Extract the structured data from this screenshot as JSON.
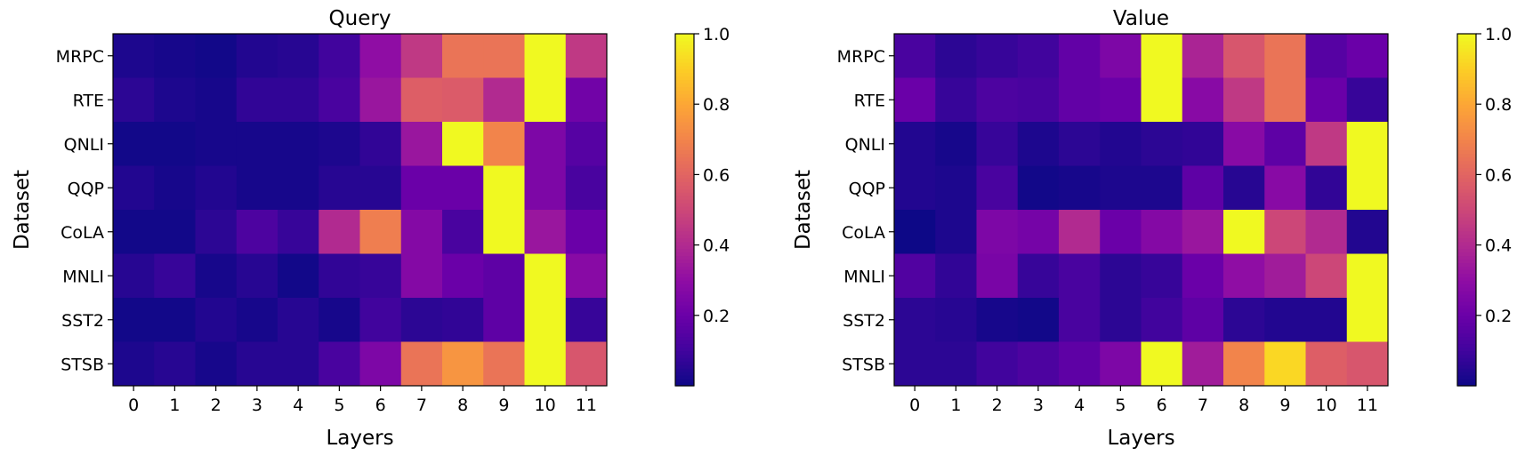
{
  "chart_data": [
    {
      "type": "heatmap",
      "title": "Query",
      "xlabel": "Layers",
      "ylabel": "Dataset",
      "colormap": "plasma",
      "x": [
        "0",
        "1",
        "2",
        "3",
        "4",
        "5",
        "6",
        "7",
        "8",
        "9",
        "10",
        "11"
      ],
      "y": [
        "MRPC",
        "RTE",
        "QNLI",
        "QQP",
        "CoLA",
        "MNLI",
        "SST2",
        "STSB"
      ],
      "colorbar_ticks": [
        "0.2",
        "0.4",
        "0.6",
        "0.8",
        "1.0"
      ],
      "vlim": [
        0.0,
        1.0
      ],
      "values": [
        [
          0.03,
          0.02,
          0.01,
          0.04,
          0.05,
          0.1,
          0.3,
          0.45,
          0.65,
          0.65,
          1.0,
          0.45
        ],
        [
          0.06,
          0.03,
          0.02,
          0.07,
          0.07,
          0.12,
          0.33,
          0.58,
          0.57,
          0.4,
          1.0,
          0.22
        ],
        [
          0.01,
          0.01,
          0.02,
          0.02,
          0.02,
          0.03,
          0.07,
          0.33,
          1.0,
          0.7,
          0.25,
          0.15
        ],
        [
          0.04,
          0.02,
          0.04,
          0.02,
          0.02,
          0.05,
          0.05,
          0.2,
          0.2,
          1.0,
          0.25,
          0.12
        ],
        [
          0.01,
          0.01,
          0.06,
          0.13,
          0.08,
          0.4,
          0.68,
          0.27,
          0.12,
          1.0,
          0.33,
          0.2
        ],
        [
          0.05,
          0.08,
          0.02,
          0.05,
          0.01,
          0.07,
          0.08,
          0.27,
          0.2,
          0.17,
          1.0,
          0.28
        ],
        [
          0.01,
          0.01,
          0.04,
          0.02,
          0.05,
          0.02,
          0.1,
          0.06,
          0.07,
          0.17,
          1.0,
          0.08
        ],
        [
          0.03,
          0.05,
          0.02,
          0.05,
          0.05,
          0.12,
          0.25,
          0.65,
          0.75,
          0.65,
          1.0,
          0.55
        ]
      ]
    },
    {
      "type": "heatmap",
      "title": "Value",
      "xlabel": "Layers",
      "ylabel": "Dataset",
      "colormap": "plasma",
      "x": [
        "0",
        "1",
        "2",
        "3",
        "4",
        "5",
        "6",
        "7",
        "8",
        "9",
        "10",
        "11"
      ],
      "y": [
        "MRPC",
        "RTE",
        "QNLI",
        "QQP",
        "CoLA",
        "MNLI",
        "SST2",
        "STSB"
      ],
      "colorbar_ticks": [
        "0.2",
        "0.4",
        "0.6",
        "0.8",
        "1.0"
      ],
      "vlim": [
        0.0,
        1.0
      ],
      "values": [
        [
          0.12,
          0.06,
          0.08,
          0.1,
          0.18,
          0.25,
          1.0,
          0.38,
          0.55,
          0.65,
          0.15,
          0.2
        ],
        [
          0.2,
          0.08,
          0.13,
          0.12,
          0.18,
          0.2,
          1.0,
          0.28,
          0.45,
          0.65,
          0.2,
          0.08
        ],
        [
          0.04,
          0.02,
          0.08,
          0.03,
          0.06,
          0.04,
          0.06,
          0.07,
          0.28,
          0.17,
          0.45,
          1.0
        ],
        [
          0.04,
          0.03,
          0.12,
          0.01,
          0.02,
          0.03,
          0.03,
          0.17,
          0.05,
          0.28,
          0.07,
          1.0
        ],
        [
          0.0,
          0.03,
          0.25,
          0.23,
          0.4,
          0.2,
          0.27,
          0.33,
          1.0,
          0.5,
          0.4,
          0.04
        ],
        [
          0.14,
          0.07,
          0.24,
          0.08,
          0.12,
          0.06,
          0.08,
          0.2,
          0.3,
          0.35,
          0.5,
          1.0
        ],
        [
          0.06,
          0.05,
          0.02,
          0.01,
          0.12,
          0.06,
          0.1,
          0.17,
          0.06,
          0.04,
          0.04,
          1.0
        ],
        [
          0.06,
          0.06,
          0.1,
          0.13,
          0.17,
          0.25,
          1.0,
          0.35,
          0.7,
          0.92,
          0.58,
          0.55
        ]
      ]
    }
  ]
}
